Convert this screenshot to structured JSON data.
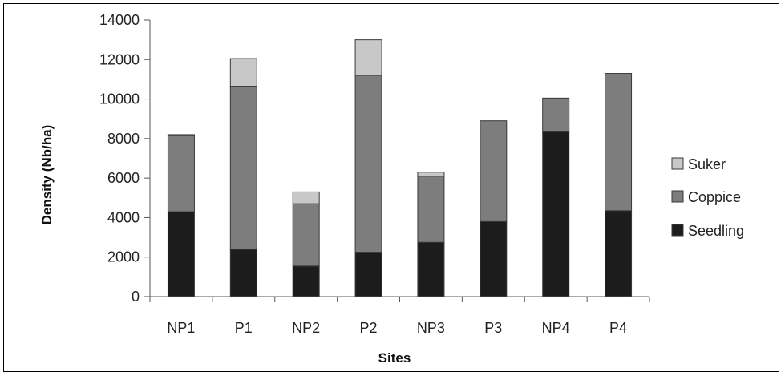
{
  "chart_data": {
    "type": "bar",
    "stacked": true,
    "title": "",
    "xlabel": "Sites",
    "ylabel": "Density (Nb/ha)",
    "ylim": [
      0,
      14000
    ],
    "yticks": [
      0,
      2000,
      4000,
      6000,
      8000,
      10000,
      12000,
      14000
    ],
    "grid": false,
    "legend_position": "right",
    "categories": [
      "NP1",
      "P1",
      "NP2",
      "P2",
      "NP3",
      "P3",
      "NP4",
      "P4"
    ],
    "series": [
      {
        "name": "Seedling",
        "color": "#1c1c1c",
        "values": [
          4300,
          2400,
          1550,
          2250,
          2750,
          3800,
          8350,
          4350
        ]
      },
      {
        "name": "Coppice",
        "color": "#7d7d7d",
        "values": [
          3850,
          8250,
          3150,
          8950,
          3350,
          5100,
          1700,
          6950
        ]
      },
      {
        "name": "Suker",
        "color": "#c8c8c8",
        "values": [
          50,
          1400,
          600,
          1800,
          200,
          0,
          0,
          0
        ]
      }
    ],
    "legend_order": [
      "Suker",
      "Coppice",
      "Seedling"
    ]
  }
}
